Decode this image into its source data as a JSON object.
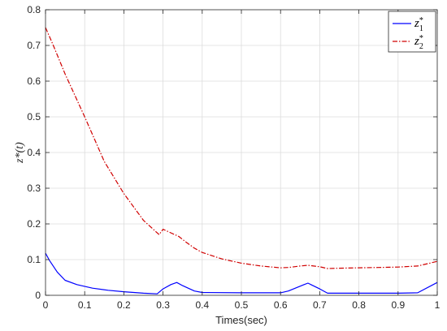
{
  "chart_data": {
    "type": "line",
    "xlabel": "Times(sec)",
    "ylabel": "z*(t)",
    "xlim": [
      0,
      1
    ],
    "ylim": [
      0,
      0.8
    ],
    "xticks": [
      "0",
      "0.1",
      "0.2",
      "0.3",
      "0.4",
      "0.5",
      "0.6",
      "0.7",
      "0.8",
      "0.9",
      "1"
    ],
    "yticks": [
      "0",
      "0.1",
      "0.2",
      "0.3",
      "0.4",
      "0.5",
      "0.6",
      "0.7",
      "0.8"
    ],
    "grid": true,
    "legend_position": "top-right",
    "series": [
      {
        "name": "z1*",
        "color": "#0000ff",
        "style": "solid",
        "x": [
          0,
          0.01,
          0.03,
          0.05,
          0.08,
          0.12,
          0.16,
          0.2,
          0.25,
          0.285,
          0.3,
          0.32,
          0.335,
          0.35,
          0.38,
          0.4,
          0.5,
          0.6,
          0.62,
          0.66,
          0.67,
          0.7,
          0.72,
          0.8,
          0.9,
          0.95,
          1.0
        ],
        "y": [
          0.118,
          0.098,
          0.065,
          0.042,
          0.03,
          0.02,
          0.014,
          0.01,
          0.006,
          0.004,
          0.018,
          0.03,
          0.036,
          0.027,
          0.012,
          0.008,
          0.007,
          0.007,
          0.012,
          0.03,
          0.034,
          0.018,
          0.006,
          0.006,
          0.006,
          0.007,
          0.036
        ]
      },
      {
        "name": "z2*",
        "color": "#d00000",
        "style": "dashdot",
        "x": [
          0,
          0.02,
          0.05,
          0.1,
          0.15,
          0.2,
          0.25,
          0.28,
          0.29,
          0.3,
          0.32,
          0.34,
          0.36,
          0.38,
          0.4,
          0.45,
          0.5,
          0.55,
          0.6,
          0.62,
          0.65,
          0.67,
          0.7,
          0.72,
          0.75,
          0.8,
          0.85,
          0.9,
          0.95,
          1.0
        ],
        "y": [
          0.75,
          0.7,
          0.62,
          0.5,
          0.375,
          0.285,
          0.21,
          0.18,
          0.17,
          0.185,
          0.175,
          0.165,
          0.148,
          0.132,
          0.12,
          0.102,
          0.09,
          0.082,
          0.077,
          0.078,
          0.082,
          0.084,
          0.08,
          0.075,
          0.076,
          0.077,
          0.078,
          0.079,
          0.082,
          0.095
        ]
      }
    ]
  }
}
